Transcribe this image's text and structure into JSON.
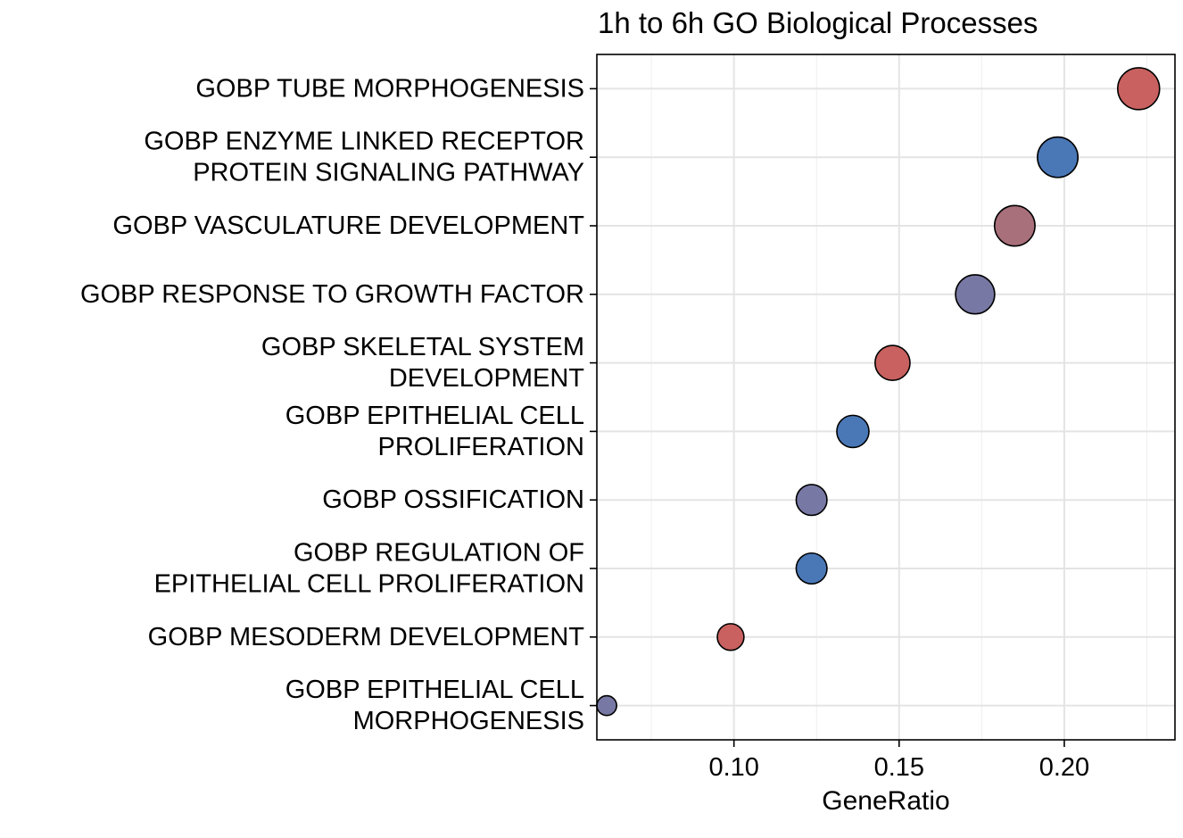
{
  "chart_data": {
    "type": "scatter",
    "title": "1h to 6h GO Biological Processes",
    "xlabel": "GeneRatio",
    "ylabel": "",
    "xlim": [
      0.0585,
      0.2335
    ],
    "x_ticks": [
      {
        "value": 0.1,
        "label": "0.10"
      },
      {
        "value": 0.15,
        "label": "0.15"
      },
      {
        "value": 0.2,
        "label": "0.20"
      }
    ],
    "grid": true,
    "legend": "none",
    "categories": [
      {
        "label_lines": [
          "GOBP TUBE MORPHOGENESIS"
        ],
        "x": 0.2225,
        "size": 9,
        "color": "#c8615f"
      },
      {
        "label_lines": [
          "GOBP ENZYME LINKED RECEPTOR",
          "PROTEIN SIGNALING PATHWAY"
        ],
        "x": 0.198,
        "size": 8.5,
        "color": "#4a78b7"
      },
      {
        "label_lines": [
          "GOBP VASCULATURE DEVELOPMENT"
        ],
        "x": 0.185,
        "size": 8.5,
        "color": "#a8707b"
      },
      {
        "label_lines": [
          "GOBP RESPONSE TO GROWTH FACTOR"
        ],
        "x": 0.173,
        "size": 8,
        "color": "#7878a4"
      },
      {
        "label_lines": [
          "GOBP SKELETAL SYSTEM",
          "DEVELOPMENT"
        ],
        "x": 0.148,
        "size": 6.5,
        "color": "#c8615f"
      },
      {
        "label_lines": [
          "GOBP EPITHELIAL CELL",
          "PROLIFERATION"
        ],
        "x": 0.136,
        "size": 5.5,
        "color": "#4a78b7"
      },
      {
        "label_lines": [
          "GOBP OSSIFICATION"
        ],
        "x": 0.1235,
        "size": 5,
        "color": "#7878a4"
      },
      {
        "label_lines": [
          "GOBP REGULATION OF",
          "EPITHELIAL CELL PROLIFERATION"
        ],
        "x": 0.1235,
        "size": 5,
        "color": "#4a78b7"
      },
      {
        "label_lines": [
          "GOBP MESODERM DEVELOPMENT"
        ],
        "x": 0.099,
        "size": 3.5,
        "color": "#c8615f"
      },
      {
        "label_lines": [
          "GOBP EPITHELIAL CELL",
          "MORPHOGENESIS"
        ],
        "x": 0.0615,
        "size": 1,
        "color": "#7878a4"
      }
    ]
  }
}
